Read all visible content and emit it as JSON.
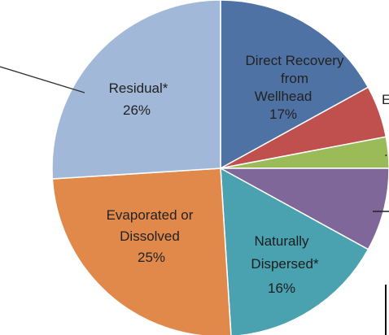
{
  "chart_data": {
    "type": "pie",
    "start_angle_deg": -90,
    "direction": "clockwise",
    "slices": [
      {
        "lines": [
          "Direct Recovery",
          "from",
          "Wellhead"
        ],
        "pct_label": "17%",
        "value": 17,
        "color": "#4f72a4"
      },
      {
        "lines": [
          "E"
        ],
        "pct_label": "",
        "value": 5,
        "color": "#c0504d"
      },
      {
        "lines": [
          "..."
        ],
        "pct_label": "",
        "value": 3,
        "color": "#9bbb59"
      },
      {
        "lines": [],
        "pct_label": "",
        "value": 8,
        "color": "#7f6899"
      },
      {
        "lines": [
          "Naturally",
          "Dispersed*"
        ],
        "pct_label": "16%",
        "value": 16,
        "color": "#4aa1b0"
      },
      {
        "lines": [
          "Evaporated or",
          "Dissolved"
        ],
        "pct_label": "25%",
        "value": 25,
        "color": "#e0894a"
      },
      {
        "lines": [
          "Residual*"
        ],
        "pct_label": "26%",
        "value": 26,
        "color": "#a2b8d9"
      }
    ]
  }
}
